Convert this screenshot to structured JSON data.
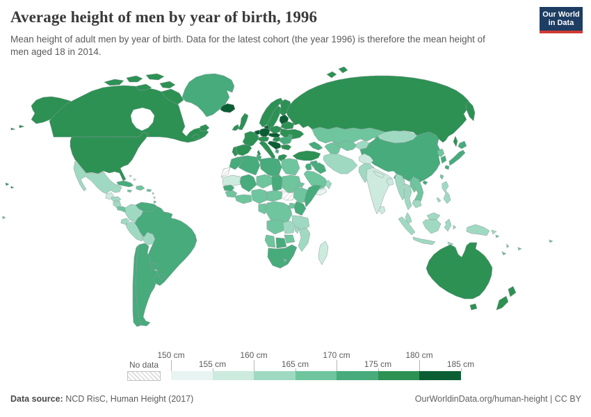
{
  "header": {
    "title": "Average height of men by year of birth, 1996",
    "subtitle": "Mean height of adult men by year of birth. Data for the latest cohort (the year 1996) is therefore the mean height of men aged 18 in 2014.",
    "logo": {
      "line1": "Our World",
      "line2": "in Data",
      "bg_color": "#1d3d63",
      "accent_color": "#cf3a33"
    }
  },
  "legend": {
    "no_data_label": "No data",
    "tick_labels": [
      "150 cm",
      "155 cm",
      "160 cm",
      "165 cm",
      "170 cm",
      "175 cm",
      "180 cm",
      "185 cm"
    ]
  },
  "footer": {
    "source_label": "Data source:",
    "source_value": " NCD RisC, Human Height (2017)",
    "right_text": "OurWorldinData.org/human-height | CC BY"
  },
  "chart_data": {
    "type": "choropleth",
    "title": "Average height of men by year of birth, 1996",
    "unit": "cm",
    "legend_position": "bottom",
    "axis_range_cm": [
      150,
      185
    ],
    "bins": [
      {
        "label": "150-155",
        "color": "#e8f4f1"
      },
      {
        "label": "155-160",
        "color": "#cdeade"
      },
      {
        "label": "160-165",
        "color": "#a0d9c2"
      },
      {
        "label": "165-170",
        "color": "#6fc59d"
      },
      {
        "label": "170-175",
        "color": "#47ab7c"
      },
      {
        "label": "175-180",
        "color": "#2d9154"
      },
      {
        "label": "180-185",
        "color": "#0b5e33"
      }
    ],
    "no_data": {
      "label": "No data",
      "pattern": "hatch"
    },
    "regions": [
      {
        "id": "usa",
        "bin": "175-180"
      },
      {
        "id": "canada",
        "bin": "175-180"
      },
      {
        "id": "greenland",
        "bin": "170-175"
      },
      {
        "id": "iceland",
        "bin": "180-185"
      },
      {
        "id": "mexico",
        "bin": "160-165"
      },
      {
        "id": "guatemala",
        "bin": "155-160"
      },
      {
        "id": "honduras",
        "bin": "160-165"
      },
      {
        "id": "nicaragua",
        "bin": "160-165"
      },
      {
        "id": "costa-rica-panama",
        "bin": "165-170"
      },
      {
        "id": "cuba",
        "bin": "170-175"
      },
      {
        "id": "jamaica",
        "bin": "165-170"
      },
      {
        "id": "hispaniola",
        "bin": "165-170"
      },
      {
        "id": "puerto-rico",
        "bin": "165-170"
      },
      {
        "id": "bahamas",
        "bin": "155-160"
      },
      {
        "id": "lesser-antilles",
        "bin": "160-165"
      },
      {
        "id": "trinidad",
        "bin": "165-170"
      },
      {
        "id": "venezuela",
        "bin": "170-175"
      },
      {
        "id": "colombia",
        "bin": "160-165"
      },
      {
        "id": "ecuador",
        "bin": "160-165"
      },
      {
        "id": "peru",
        "bin": "160-165"
      },
      {
        "id": "bolivia",
        "bin": "160-165"
      },
      {
        "id": "guyana",
        "bin": "165-170"
      },
      {
        "id": "suriname",
        "bin": "165-170"
      },
      {
        "id": "french-guiana",
        "bin": "no-data"
      },
      {
        "id": "brazil",
        "bin": "170-175"
      },
      {
        "id": "paraguay",
        "bin": "170-175"
      },
      {
        "id": "uruguay",
        "bin": "170-175"
      },
      {
        "id": "argentina",
        "bin": "170-175"
      },
      {
        "id": "chile",
        "bin": "170-175"
      },
      {
        "id": "uk",
        "bin": "175-180"
      },
      {
        "id": "ireland",
        "bin": "175-180"
      },
      {
        "id": "norway",
        "bin": "175-180"
      },
      {
        "id": "sweden",
        "bin": "175-180"
      },
      {
        "id": "finland",
        "bin": "175-180"
      },
      {
        "id": "denmark",
        "bin": "180-185"
      },
      {
        "id": "netherlands-belgium",
        "bin": "180-185"
      },
      {
        "id": "germany",
        "bin": "180-185"
      },
      {
        "id": "france",
        "bin": "175-180"
      },
      {
        "id": "spain",
        "bin": "175-180"
      },
      {
        "id": "portugal",
        "bin": "175-180"
      },
      {
        "id": "italy",
        "bin": "175-180"
      },
      {
        "id": "switzerland-austria",
        "bin": "175-180"
      },
      {
        "id": "czech-slovakia",
        "bin": "180-185"
      },
      {
        "id": "poland",
        "bin": "175-180"
      },
      {
        "id": "baltics",
        "bin": "180-185"
      },
      {
        "id": "belarus",
        "bin": "175-180"
      },
      {
        "id": "ukraine",
        "bin": "175-180"
      },
      {
        "id": "moldova",
        "bin": "170-175"
      },
      {
        "id": "romania",
        "bin": "170-175"
      },
      {
        "id": "hungary",
        "bin": "175-180"
      },
      {
        "id": "balkans",
        "bin": "180-185"
      },
      {
        "id": "albania",
        "bin": "170-175"
      },
      {
        "id": "bulgaria",
        "bin": "175-180"
      },
      {
        "id": "greece",
        "bin": "175-180"
      },
      {
        "id": "russia",
        "bin": "175-180"
      },
      {
        "id": "kazakhstan",
        "bin": "165-170"
      },
      {
        "id": "uzbekistan",
        "bin": "165-170"
      },
      {
        "id": "turkmenistan",
        "bin": "165-170"
      },
      {
        "id": "kyrgyz-tajik",
        "bin": "160-165"
      },
      {
        "id": "caucasus",
        "bin": "170-175"
      },
      {
        "id": "mongolia",
        "bin": "160-165"
      },
      {
        "id": "china",
        "bin": "170-175"
      },
      {
        "id": "north-korea",
        "bin": "165-170"
      },
      {
        "id": "south-korea",
        "bin": "170-175"
      },
      {
        "id": "japan",
        "bin": "170-175"
      },
      {
        "id": "taiwan",
        "bin": "165-170"
      },
      {
        "id": "turkey",
        "bin": "175-180"
      },
      {
        "id": "syria",
        "bin": "170-175"
      },
      {
        "id": "jordan-israel",
        "bin": "170-175"
      },
      {
        "id": "iraq",
        "bin": "170-175"
      },
      {
        "id": "iran",
        "bin": "160-165"
      },
      {
        "id": "afghanistan",
        "bin": "155-160"
      },
      {
        "id": "pakistan",
        "bin": "160-165"
      },
      {
        "id": "saudi-arabia",
        "bin": "165-170"
      },
      {
        "id": "yemen",
        "bin": "150-155"
      },
      {
        "id": "oman",
        "bin": "160-165"
      },
      {
        "id": "india",
        "bin": "155-160"
      },
      {
        "id": "sri-lanka",
        "bin": "155-160"
      },
      {
        "id": "nepal",
        "bin": "155-160"
      },
      {
        "id": "bangladesh",
        "bin": "155-160"
      },
      {
        "id": "myanmar",
        "bin": "160-165"
      },
      {
        "id": "thailand",
        "bin": "160-165"
      },
      {
        "id": "laos",
        "bin": "165-170"
      },
      {
        "id": "vietnam",
        "bin": "165-170"
      },
      {
        "id": "cambodia",
        "bin": "160-165"
      },
      {
        "id": "malaysia",
        "bin": "160-165"
      },
      {
        "id": "indonesia",
        "bin": "160-165"
      },
      {
        "id": "philippines",
        "bin": "160-165"
      },
      {
        "id": "papua-new-guinea",
        "bin": "160-165"
      },
      {
        "id": "pacific-islands",
        "bin": "165-170"
      },
      {
        "id": "australia",
        "bin": "175-180"
      },
      {
        "id": "new-zealand",
        "bin": "175-180"
      },
      {
        "id": "morocco",
        "bin": "170-175"
      },
      {
        "id": "western-sahara",
        "bin": "no-data"
      },
      {
        "id": "algeria",
        "bin": "170-175"
      },
      {
        "id": "tunisia",
        "bin": "170-175"
      },
      {
        "id": "libya",
        "bin": "170-175"
      },
      {
        "id": "egypt",
        "bin": "165-170"
      },
      {
        "id": "mauritania",
        "bin": "155-160"
      },
      {
        "id": "mali",
        "bin": "170-175"
      },
      {
        "id": "niger",
        "bin": "165-170"
      },
      {
        "id": "chad",
        "bin": "170-175"
      },
      {
        "id": "sudan",
        "bin": "165-170"
      },
      {
        "id": "south-sudan",
        "bin": "no-data"
      },
      {
        "id": "eritrea",
        "bin": "165-170"
      },
      {
        "id": "djibouti",
        "bin": "165-170"
      },
      {
        "id": "ethiopia",
        "bin": "165-170"
      },
      {
        "id": "somalia",
        "bin": "170-175"
      },
      {
        "id": "senegal",
        "bin": "170-175"
      },
      {
        "id": "guinea",
        "bin": "165-170"
      },
      {
        "id": "ivory-ghana",
        "bin": "165-170"
      },
      {
        "id": "nigeria",
        "bin": "165-170"
      },
      {
        "id": "cameroon-car",
        "bin": "165-170"
      },
      {
        "id": "gabon-congo",
        "bin": "165-170"
      },
      {
        "id": "drc",
        "bin": "165-170"
      },
      {
        "id": "uganda",
        "bin": "165-170"
      },
      {
        "id": "kenya",
        "bin": "170-175"
      },
      {
        "id": "tanzania",
        "bin": "160-165"
      },
      {
        "id": "angola",
        "bin": "165-170"
      },
      {
        "id": "zambia",
        "bin": "160-165"
      },
      {
        "id": "malawi",
        "bin": "160-165"
      },
      {
        "id": "mozambique",
        "bin": "160-165"
      },
      {
        "id": "zimbabwe",
        "bin": "165-170"
      },
      {
        "id": "botswana",
        "bin": "170-175"
      },
      {
        "id": "namibia",
        "bin": "165-170"
      },
      {
        "id": "south-africa",
        "bin": "170-175"
      },
      {
        "id": "lesotho",
        "bin": "165-170"
      },
      {
        "id": "madagascar",
        "bin": "155-160"
      }
    ]
  }
}
